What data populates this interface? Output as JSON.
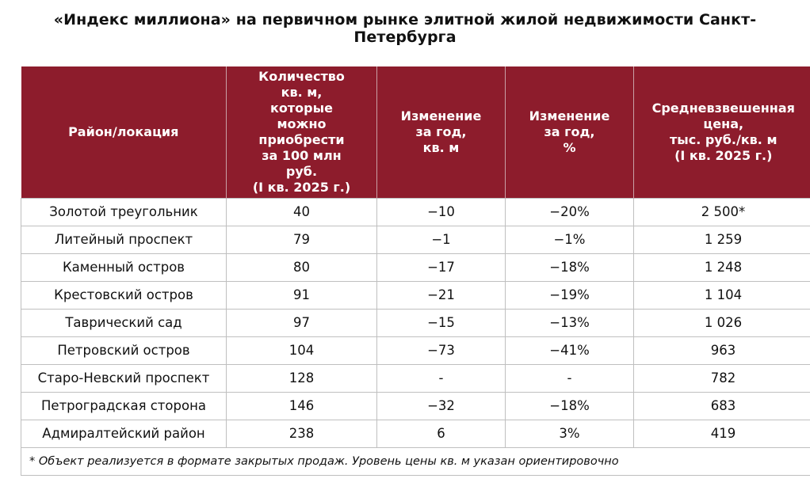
{
  "title": {
    "line1": "«Индекс миллиона» на первичном рынке элитной жилой недвижимости Санкт-",
    "line2": "Петербурга"
  },
  "headers": [
    {
      "lines": [
        "Район/локация"
      ]
    },
    {
      "lines": [
        "Количество",
        "кв. м,",
        "которые",
        "можно",
        "приобрести",
        "за 100 млн",
        "руб.",
        "(I кв. 2025 г.)"
      ]
    },
    {
      "lines": [
        "Изменение",
        "за год,",
        "кв. м"
      ]
    },
    {
      "lines": [
        "Изменение",
        "за год,",
        "%"
      ]
    },
    {
      "lines": [
        "Средневзвешенная",
        "цена,",
        "тыс. руб./кв. м",
        "(I кв. 2025 г.)"
      ]
    }
  ],
  "rows": [
    [
      "Золотой треугольник",
      "40",
      "−10",
      "−20%",
      "2 500*"
    ],
    [
      "Литейный проспект",
      "79",
      "−1",
      "−1%",
      "1 259"
    ],
    [
      "Каменный остров",
      "80",
      "−17",
      "−18%",
      "1 248"
    ],
    [
      "Крестовский остров",
      "91",
      "−21",
      "−19%",
      "1 104"
    ],
    [
      "Таврический сад",
      "97",
      "−15",
      "−13%",
      "1 026"
    ],
    [
      "Петровский остров",
      "104",
      "−73",
      "−41%",
      "963"
    ],
    [
      "Старо-Невский проспект",
      "128",
      "-",
      "-",
      "782"
    ],
    [
      "Петроградская сторона",
      "146",
      "−32",
      "−18%",
      "683"
    ],
    [
      "Адмиралтейский район",
      "238",
      "6",
      "3%",
      "419"
    ]
  ],
  "footnote": "* Объект реализуется в формате закрытых продаж. Уровень цены кв. м указан ориентировочно",
  "colors": {
    "header_bg": "#8d1c2c",
    "header_text": "#ffffff",
    "grid": "#bfbfbf"
  }
}
